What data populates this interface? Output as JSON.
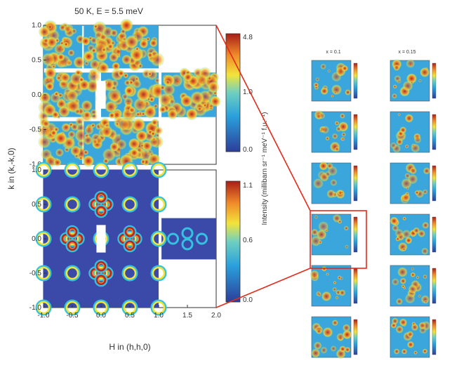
{
  "chart_data": [
    {
      "type": "heatmap",
      "title": "50 K, E = 5.5 meV",
      "panel": "measured",
      "xlim": [
        -1.0,
        2.0
      ],
      "ylim": [
        -1.0,
        1.0
      ],
      "yticks": [
        "1.0",
        "0.5",
        "0.0",
        "-0.5",
        "-1.0"
      ],
      "colorbar": {
        "ticks": [
          "4.8",
          "1.0",
          "0.0"
        ],
        "range": [
          0.0,
          4.8
        ]
      }
    },
    {
      "type": "heatmap",
      "title": "",
      "panel": "model",
      "xlim": [
        -1.0,
        2.0
      ],
      "ylim": [
        -1.0,
        1.0
      ],
      "xlabel": "H in (h,h,0)",
      "ylabel": "k in (k,-k,0)",
      "xticks": [
        "-1.0",
        "-0.5",
        "0.0",
        "0.5",
        "1.0",
        "1.5",
        "2.0"
      ],
      "yticks": [
        "1.0",
        "0.5",
        "0.0",
        "-0.5",
        "-1.0"
      ],
      "colorbar": {
        "ticks": [
          "1.1",
          "0.6",
          "0.0"
        ],
        "range": [
          0.0,
          1.1
        ]
      },
      "colorbar_label": "Intensity (millibarn sr⁻¹ meV⁻¹ f.u.⁻¹)"
    },
    {
      "type": "heatmap",
      "panel": "small-grid",
      "columns": 2,
      "rows": 6,
      "column_labels": [
        "x = 0.1",
        "x = 0.15"
      ]
    }
  ],
  "colors": {
    "low": "#3b4aa8",
    "mid": "#35c2e0",
    "high": "#f2e43a",
    "peak": "#b5271f",
    "highlight": "#e32b1b"
  }
}
